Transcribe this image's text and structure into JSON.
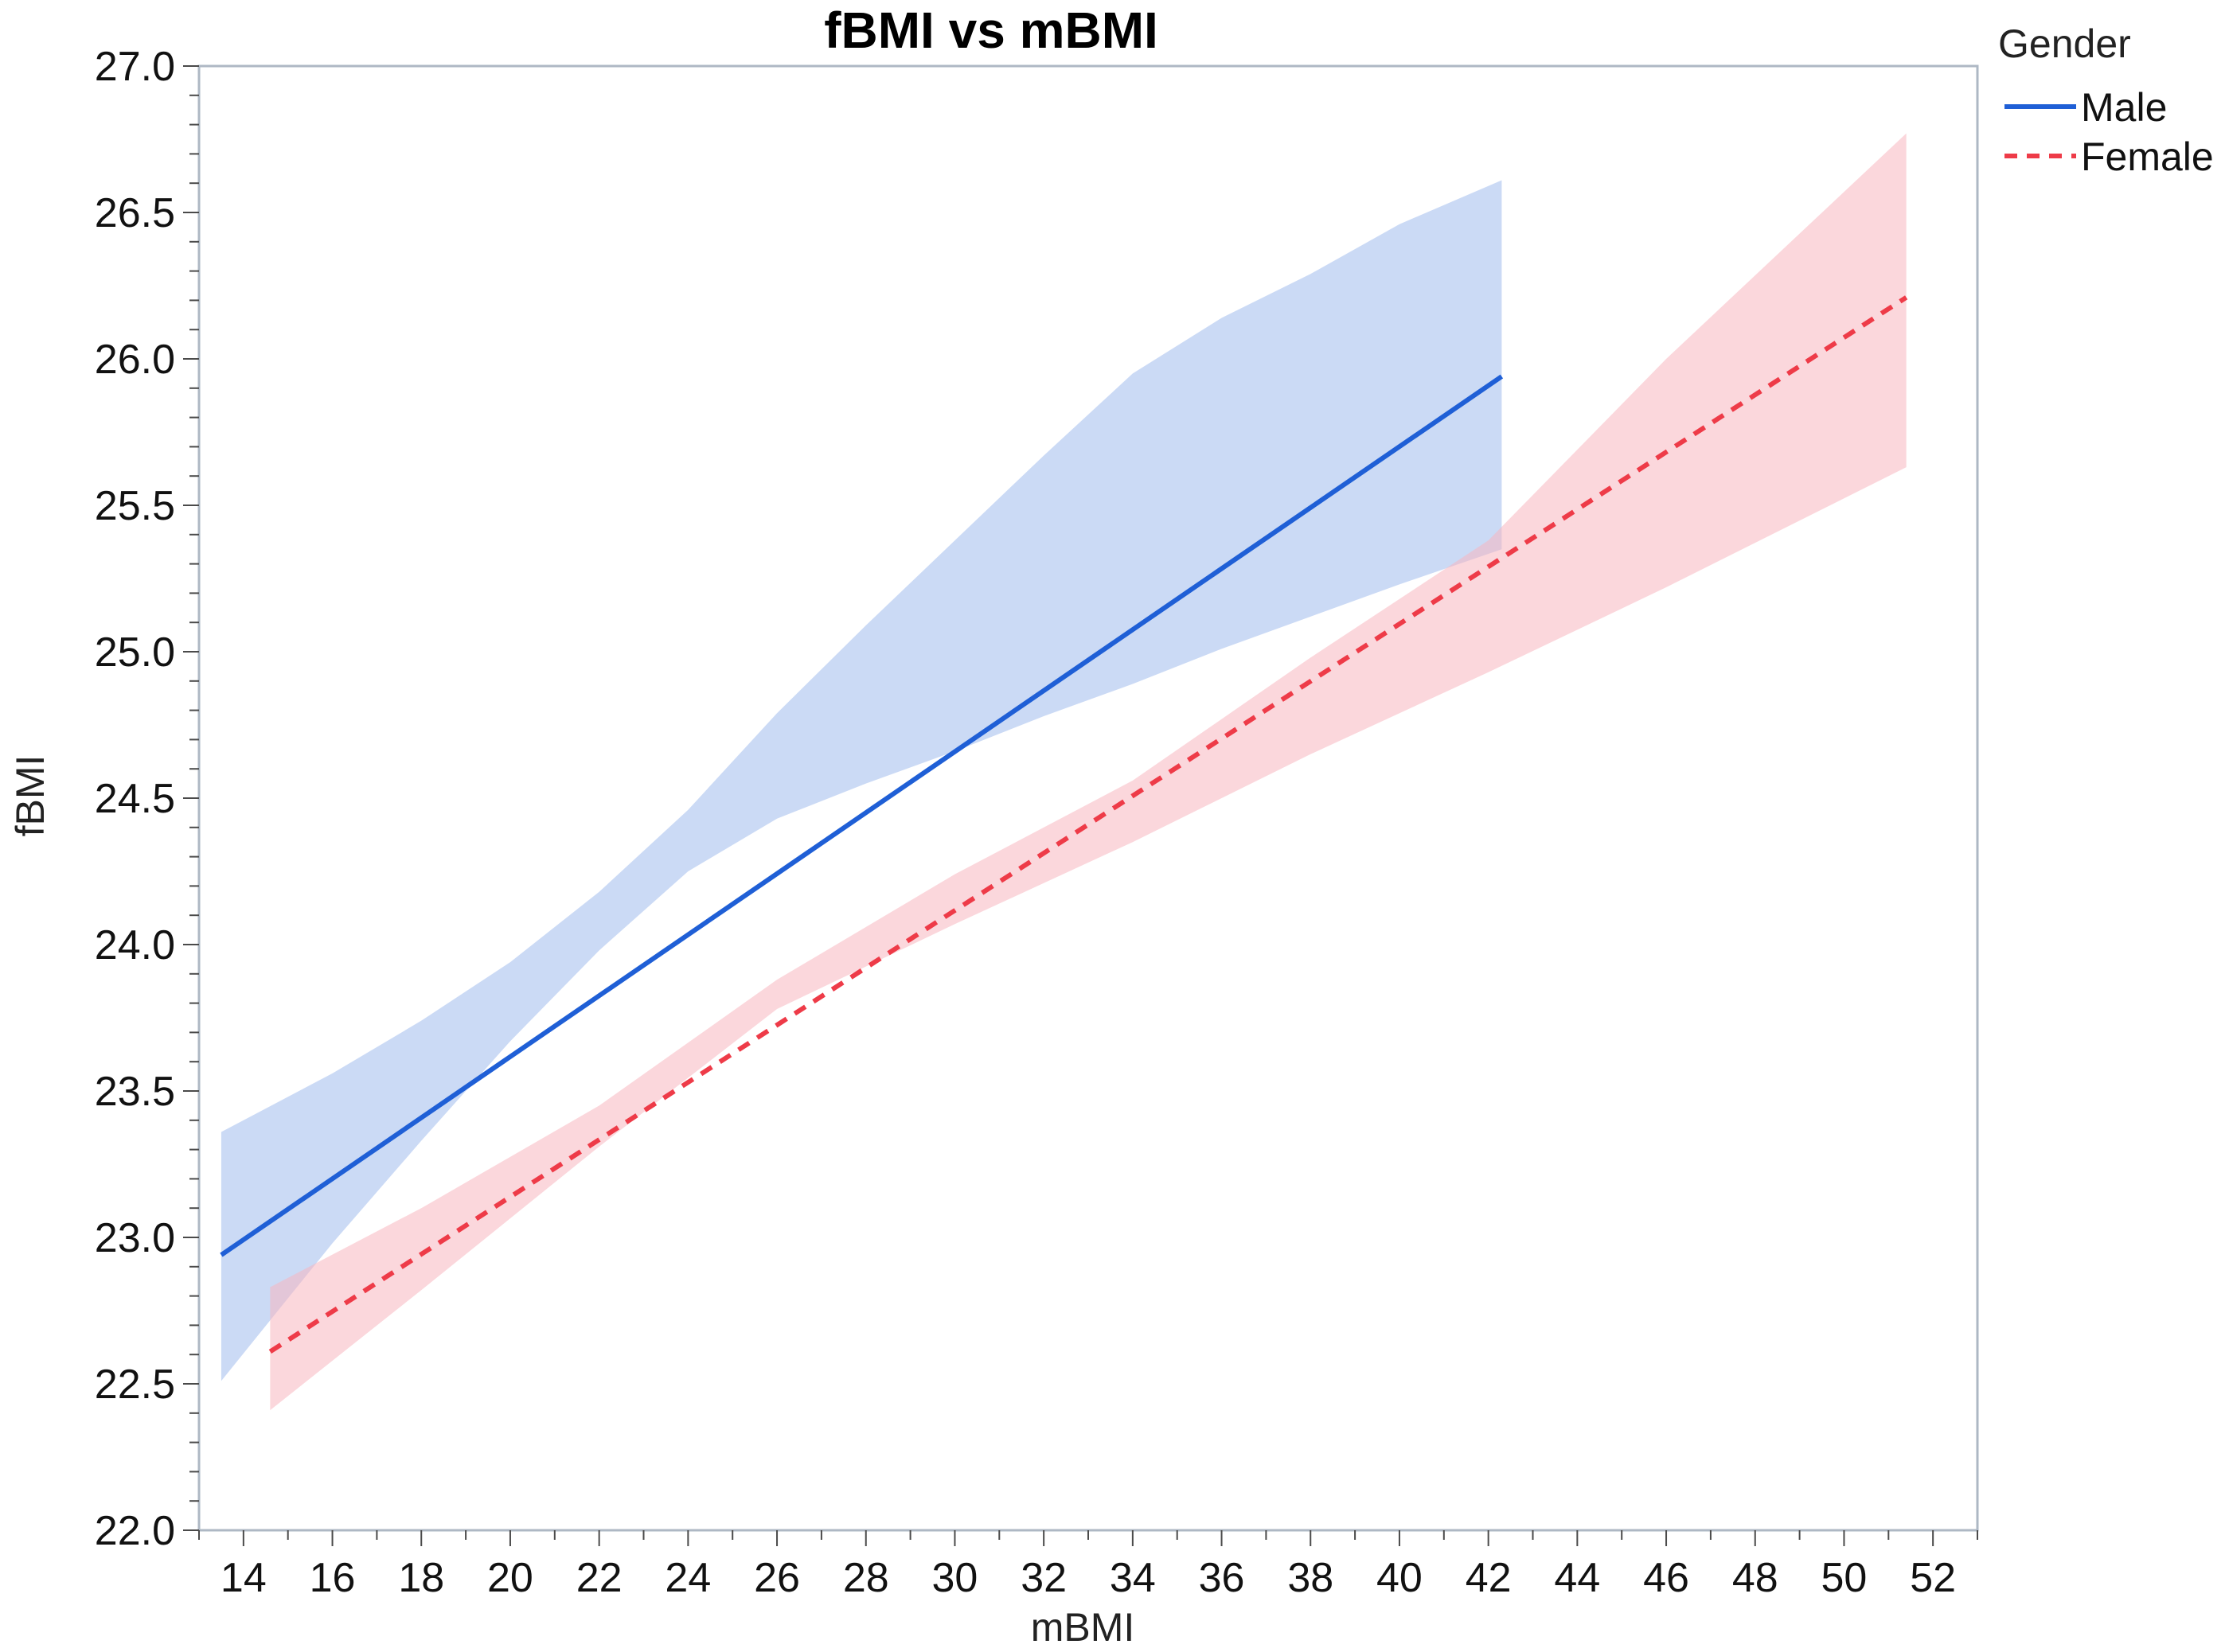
{
  "chart_data": {
    "type": "line",
    "title": "fBMI vs mBMI",
    "xlabel": "mBMI",
    "ylabel": "fBMI",
    "xlim": [
      13,
      53
    ],
    "ylim": [
      22.0,
      27.0
    ],
    "x_ticks": [
      "14",
      "16",
      "18",
      "20",
      "22",
      "24",
      "26",
      "28",
      "30",
      "32",
      "34",
      "36",
      "38",
      "40",
      "42",
      "44",
      "46",
      "48",
      "50",
      "52"
    ],
    "y_ticks": [
      "22.0",
      "22.5",
      "23.0",
      "23.5",
      "24.0",
      "24.5",
      "25.0",
      "25.5",
      "26.0",
      "26.5",
      "27.0"
    ],
    "grid": false,
    "legend": {
      "title": "Gender",
      "position": "top-right-outside"
    },
    "series": [
      {
        "name": "Male",
        "style": "solid",
        "color": "#1f5fd6",
        "band_color": "#a9c1ef",
        "x": [
          13.5,
          42.3
        ],
        "y": [
          22.94,
          25.94
        ],
        "band": {
          "x": [
            13.5,
            16,
            18,
            20,
            22,
            24,
            26,
            28,
            30,
            32,
            34,
            36,
            38,
            40,
            42.3
          ],
          "lower": [
            22.51,
            22.98,
            23.33,
            23.67,
            23.98,
            24.25,
            24.43,
            24.55,
            24.66,
            24.78,
            24.89,
            25.01,
            25.12,
            25.23,
            25.35
          ],
          "upper": [
            23.36,
            23.56,
            23.74,
            23.94,
            24.18,
            24.46,
            24.79,
            25.09,
            25.38,
            25.67,
            25.95,
            26.14,
            26.29,
            26.46,
            26.61
          ]
        }
      },
      {
        "name": "Female",
        "style": "dashed",
        "color": "#ee3b48",
        "band_color": "#f8b7bf",
        "x": [
          14.6,
          51.4
        ],
        "y": [
          22.61,
          26.21
        ],
        "band": {
          "x": [
            14.6,
            18,
            22,
            26,
            30,
            34,
            38,
            42,
            46,
            51.4
          ],
          "lower": [
            22.41,
            22.82,
            23.31,
            23.78,
            24.07,
            24.35,
            24.65,
            24.93,
            25.22,
            25.63
          ],
          "upper": [
            22.83,
            23.1,
            23.45,
            23.88,
            24.24,
            24.56,
            24.98,
            25.38,
            26.0,
            26.77
          ]
        }
      }
    ]
  }
}
